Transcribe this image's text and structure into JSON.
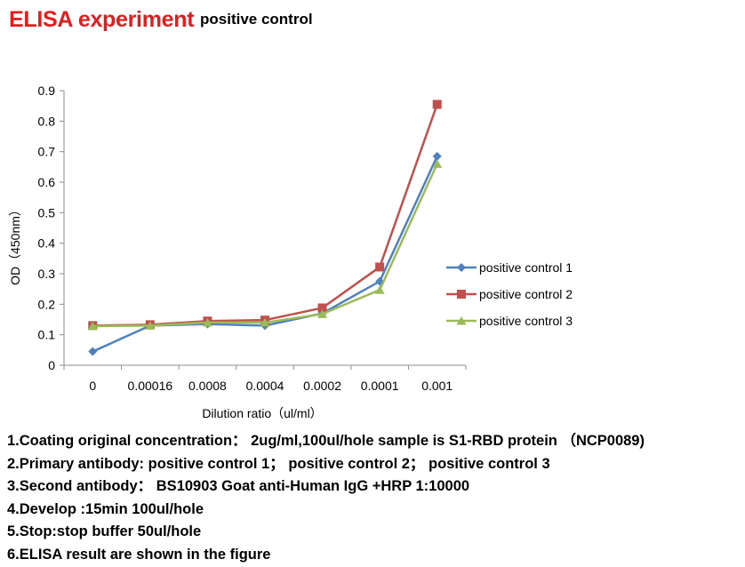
{
  "header": {
    "title": "ELISA experiment",
    "subtitle": "positive control"
  },
  "colors": {
    "title": "#e11d1d",
    "axis": "#8c8c8c",
    "series": [
      "#4f81bd",
      "#c0504d",
      "#9bbb59"
    ]
  },
  "chart_data": {
    "type": "line",
    "xlabel": "Dilution ratio（ul/ml）",
    "ylabel": "OD（450nm）",
    "categories": [
      "0",
      "0.00016",
      "0.0008",
      "0.0004",
      "0.0002",
      "0.0001",
      "0.001"
    ],
    "ylim": [
      0,
      0.9
    ],
    "yticks": [
      "0",
      "0.1",
      "0.2",
      "0.3",
      "0.4",
      "0.5",
      "0.6",
      "0.7",
      "0.8",
      "0.9"
    ],
    "grid": false,
    "legend": "right",
    "series": [
      {
        "name": "positive control 1",
        "marker": "diamond",
        "values": [
          0.045,
          0.13,
          0.135,
          0.13,
          0.17,
          0.275,
          0.685
        ]
      },
      {
        "name": "positive control 2",
        "marker": "square",
        "values": [
          0.13,
          0.133,
          0.145,
          0.148,
          0.188,
          0.322,
          0.855
        ]
      },
      {
        "name": "positive control 3",
        "marker": "triangle",
        "values": [
          0.128,
          0.13,
          0.14,
          0.14,
          0.168,
          0.247,
          0.66
        ]
      }
    ]
  },
  "notes": [
    "1.Coating original concentration： 2ug/ml,100ul/hole sample is S1-RBD protein （NCP0089)",
    "2.Primary antibody: positive control 1； positive control 2； positive control 3",
    "3.Second antibody： BS10903 Goat anti-Human IgG +HRP 1:10000",
    "4.Develop :15min 100ul/hole",
    "5.Stop:stop buffer 50ul/hole",
    "6.ELISA result are shown in the figure"
  ]
}
